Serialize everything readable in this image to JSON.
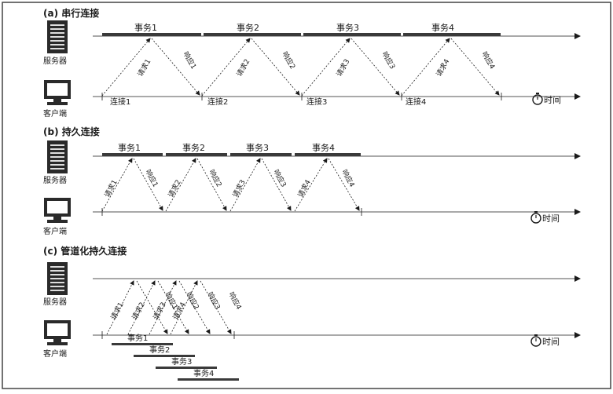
{
  "sections": [
    {
      "id": "a",
      "title": "(a) 串行连接",
      "server_label": "服务器",
      "client_label": "客户端",
      "transactions": [
        "事务1",
        "事务2",
        "事务3",
        "事务4"
      ],
      "requests": [
        "请求1",
        "请求2",
        "请求3",
        "请求4"
      ],
      "responses": [
        "响应1",
        "响应2",
        "响应3",
        "响应4"
      ],
      "connections": [
        "连接1",
        "连接2",
        "连接3",
        "连接4"
      ],
      "time_label": "时间"
    },
    {
      "id": "b",
      "title": "(b) 持久连接",
      "server_label": "服务器",
      "client_label": "客户端",
      "transactions": [
        "事务1",
        "事务2",
        "事务3",
        "事务4"
      ],
      "requests": [
        "请求1",
        "请求2",
        "请求3",
        "请求4"
      ],
      "responses": [
        "响应1",
        "响应2",
        "响应3",
        "响应4"
      ],
      "time_label": "时间"
    },
    {
      "id": "c",
      "title": "(c) 管道化持久连接",
      "server_label": "服务器",
      "client_label": "客户端",
      "transactions": [
        "事务1",
        "事务2",
        "事务3",
        "事务4"
      ],
      "requests": [
        "请求1",
        "请求2",
        "请求3",
        "请求4"
      ],
      "responses": [
        "响应1",
        "响应2",
        "响应3",
        "响应4"
      ],
      "time_label": "时间"
    }
  ],
  "colors": {
    "ink": "#1a1a1a",
    "bar": "#3a3a3a",
    "frame": "#444444"
  }
}
